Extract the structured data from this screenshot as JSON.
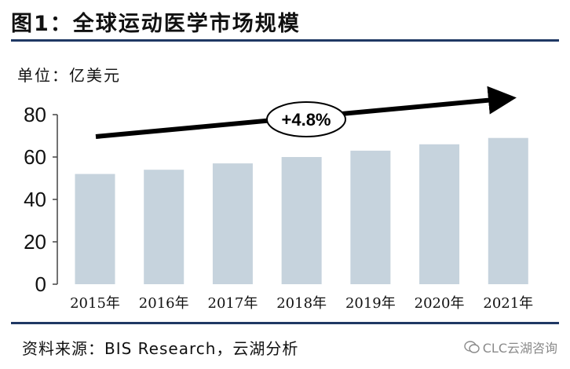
{
  "header": {
    "title": "图1：全球运动医学市场规模",
    "unit": "单位：亿美元"
  },
  "footer": {
    "source": "资料来源：BIS Research，云湖分析",
    "watermark": "CLC云湖咨询"
  },
  "colors": {
    "bar": "#c6d3dd",
    "rule": "#1f3864",
    "arrow": "#000000"
  },
  "chart_data": {
    "type": "bar",
    "categories": [
      "2015年",
      "2016年",
      "2017年",
      "2018年",
      "2019年",
      "2020年",
      "2021年"
    ],
    "values": [
      52,
      54,
      57,
      60,
      63,
      66,
      69
    ],
    "ylim": [
      0,
      80
    ],
    "yticks": [
      0,
      20,
      40,
      60,
      80
    ],
    "grid": false,
    "annotation": "+4.8%"
  }
}
